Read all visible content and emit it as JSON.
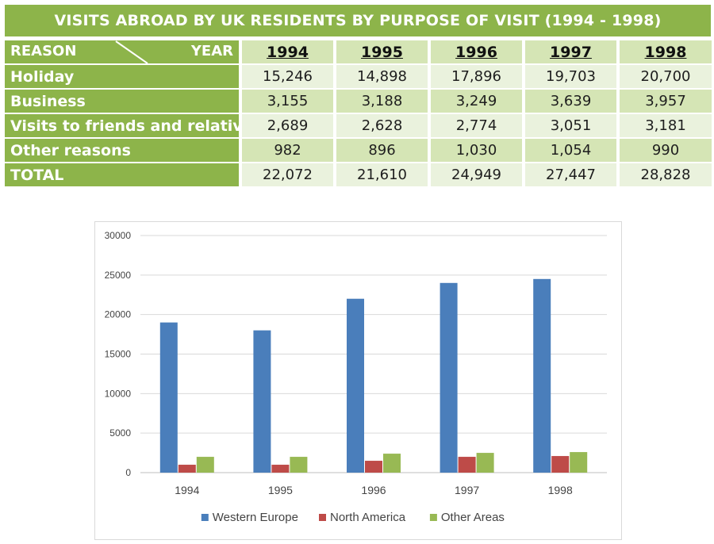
{
  "table": {
    "title": "VISITS ABROAD BY UK RESIDENTS BY PURPOSE OF VISIT (1994 - 1998)",
    "corner_left": "REASON",
    "corner_right": "YEAR",
    "years": [
      "1994",
      "1995",
      "1996",
      "1997",
      "1998"
    ],
    "rows": [
      {
        "label": "Holiday",
        "values": [
          "15,246",
          "14,898",
          "17,896",
          "19,703",
          "20,700"
        ]
      },
      {
        "label": "Business",
        "values": [
          "3,155",
          "3,188",
          "3,249",
          "3,639",
          "3,957"
        ]
      },
      {
        "label": "Visits to friends and relatives",
        "values": [
          "2,689",
          "2,628",
          "2,774",
          "3,051",
          "3,181"
        ]
      },
      {
        "label": "Other reasons",
        "values": [
          "982",
          "896",
          "1,030",
          "1,054",
          "990"
        ]
      },
      {
        "label": "TOTAL",
        "values": [
          "22,072",
          "21,610",
          "24,949",
          "27,447",
          "28,828"
        ]
      }
    ],
    "colors": {
      "header_green": "#8db44a",
      "cell_shade": "#d5e5b5",
      "cell_light": "#eaf2dd"
    }
  },
  "chart_data": {
    "type": "bar",
    "title": "",
    "xlabel": "",
    "ylabel": "",
    "categories": [
      "1994",
      "1995",
      "1996",
      "1997",
      "1998"
    ],
    "series": [
      {
        "name": "Western Europe",
        "color": "#4a7ebb",
        "values": [
          19000,
          18000,
          22000,
          24000,
          24500
        ]
      },
      {
        "name": "North America",
        "color": "#be4b48",
        "values": [
          1000,
          1000,
          1500,
          2000,
          2100
        ]
      },
      {
        "name": "Other Areas",
        "color": "#98b954",
        "values": [
          2000,
          2000,
          2400,
          2500,
          2600
        ]
      }
    ],
    "ylim": [
      0,
      30000
    ],
    "yticks": [
      "0",
      "5000",
      "10000",
      "15000",
      "20000",
      "25000",
      "30000"
    ],
    "grid": true,
    "legend": "bottom"
  }
}
